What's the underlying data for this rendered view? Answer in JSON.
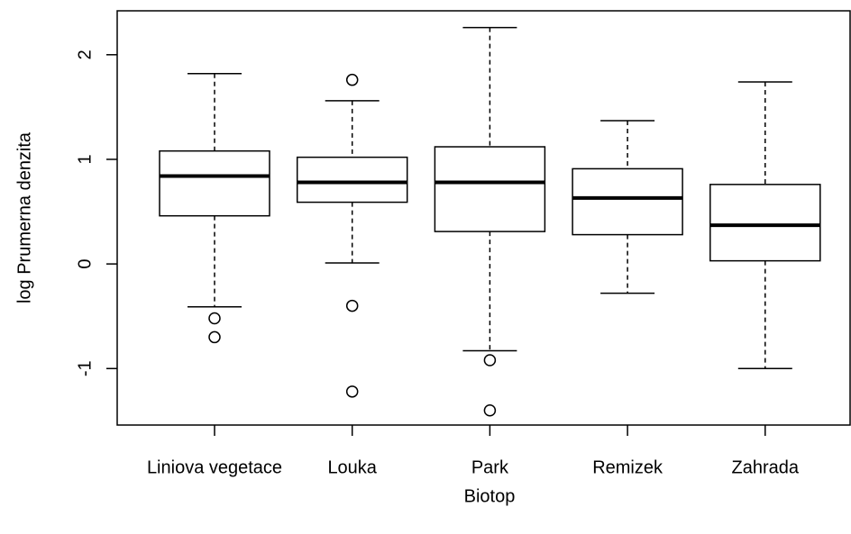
{
  "chart_data": {
    "type": "box",
    "x_label": "Biotop",
    "y_label": "log Prumerna denzita",
    "categories": [
      "Liniova vegetace",
      "Louka",
      "Park",
      "Remizek",
      "Zahrada"
    ],
    "boxes": [
      {
        "min": -0.41,
        "q1": 0.46,
        "median": 0.84,
        "q3": 1.08,
        "max": 1.82,
        "outliers": [
          -0.52,
          -0.7
        ]
      },
      {
        "min": 0.01,
        "q1": 0.59,
        "median": 0.78,
        "q3": 1.02,
        "max": 1.56,
        "outliers": [
          1.76,
          -0.4,
          -1.22
        ]
      },
      {
        "min": -0.83,
        "q1": 0.31,
        "median": 0.78,
        "q3": 1.12,
        "max": 2.26,
        "outliers": [
          -0.92,
          -1.4
        ]
      },
      {
        "min": -0.28,
        "q1": 0.28,
        "median": 0.63,
        "q3": 0.91,
        "max": 1.37,
        "outliers": []
      },
      {
        "min": -1.0,
        "q1": 0.03,
        "median": 0.37,
        "q3": 0.76,
        "max": 1.74,
        "outliers": []
      }
    ],
    "color": "#000000",
    "ylim": [
      -1.54,
      2.42
    ],
    "yticks": [
      -1,
      0,
      1,
      2
    ]
  }
}
